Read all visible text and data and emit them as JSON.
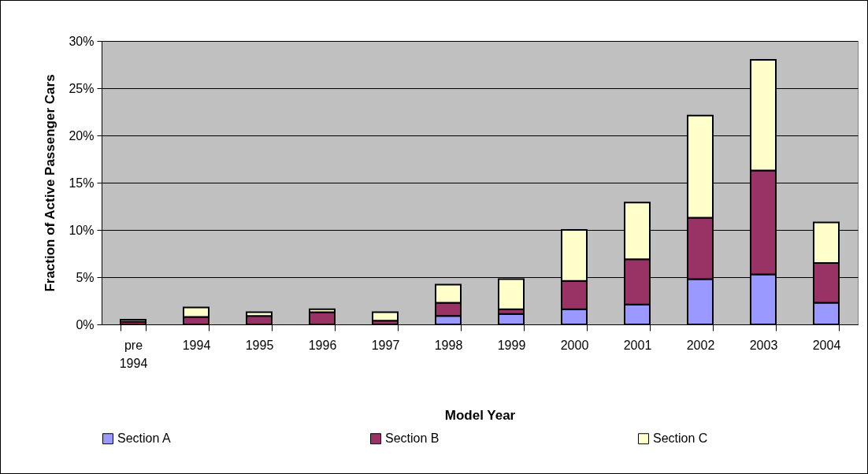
{
  "chart_data": {
    "type": "bar",
    "stacked": true,
    "xlabel": "Model Year",
    "ylabel": "Fraction of Active Passenger Cars",
    "categories": [
      "pre 1994",
      "1994",
      "1995",
      "1996",
      "1997",
      "1998",
      "1999",
      "2000",
      "2001",
      "2002",
      "2003",
      "2004"
    ],
    "series": [
      {
        "name": "Section A",
        "color": "#9999ff",
        "values": [
          0,
          0,
          0,
          null,
          null,
          0.9,
          1.1,
          1.6,
          2.1,
          4.8,
          5.3,
          2.3
        ]
      },
      {
        "name": "Section B",
        "color": "#993366",
        "values": [
          0.3,
          0.8,
          0.9,
          1.3,
          0.4,
          1.4,
          0.5,
          3.0,
          4.8,
          6.5,
          11.0,
          4.2
        ]
      },
      {
        "name": "Section C",
        "color": "#ffffcc",
        "values": [
          0.2,
          1.0,
          0.4,
          0.3,
          0.9,
          1.9,
          3.2,
          5.4,
          6.0,
          10.8,
          11.7,
          4.3
        ]
      }
    ],
    "ylim": [
      0,
      30
    ],
    "yticks": [
      {
        "value": 0,
        "label": "0%"
      },
      {
        "value": 5,
        "label": "5%"
      },
      {
        "value": 10,
        "label": "10%"
      },
      {
        "value": 15,
        "label": "15%"
      },
      {
        "value": 20,
        "label": "20%"
      },
      {
        "value": 25,
        "label": "25%"
      },
      {
        "value": 30,
        "label": "30%"
      }
    ],
    "grid": "y",
    "legend": "bottom"
  }
}
